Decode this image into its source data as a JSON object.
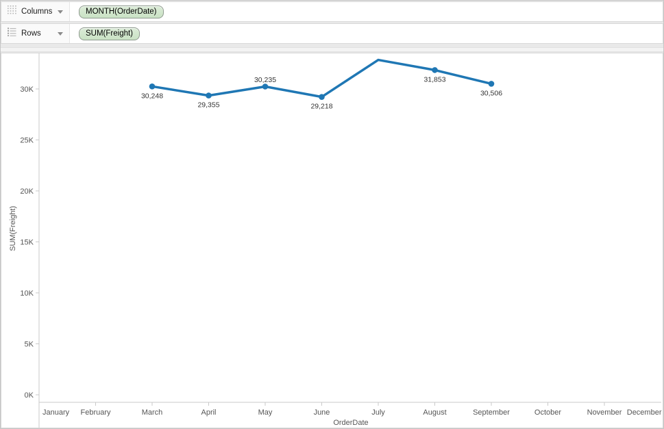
{
  "shelves": {
    "columns": {
      "label": "Columns",
      "pill": "MONTH(OrderDate)"
    },
    "rows": {
      "label": "Rows",
      "pill": "SUM(Freight)"
    }
  },
  "chart_data": {
    "type": "line",
    "title": "",
    "xlabel": "OrderDate",
    "ylabel": "SUM(Freight)",
    "x_categories": [
      "January",
      "February",
      "March",
      "April",
      "May",
      "June",
      "July",
      "August",
      "September",
      "October",
      "November",
      "December"
    ],
    "y_ticks": [
      "0K",
      "5K",
      "10K",
      "15K",
      "20K",
      "25K",
      "30K"
    ],
    "y_tick_values": [
      0,
      5000,
      10000,
      15000,
      20000,
      25000,
      30000
    ],
    "ylim": [
      0,
      33500
    ],
    "grid": "off",
    "legend": "none",
    "series": [
      {
        "name": "SUM(Freight)",
        "color": "#1f77b4",
        "points": [
          {
            "month": "March",
            "value": 30248,
            "label": "30,248",
            "label_position": "below",
            "marker": true
          },
          {
            "month": "April",
            "value": 29355,
            "label": "29,355",
            "label_position": "below",
            "marker": true
          },
          {
            "month": "May",
            "value": 30235,
            "label": "30,235",
            "label_position": "above",
            "marker": true
          },
          {
            "month": "June",
            "value": 29218,
            "label": "29,218",
            "label_position": "below",
            "marker": true
          },
          {
            "month": "July",
            "value": 32850,
            "label": "",
            "label_position": "none",
            "marker": false,
            "value_estimated": true
          },
          {
            "month": "August",
            "value": 31853,
            "label": "31,853",
            "label_position": "below",
            "marker": true
          },
          {
            "month": "September",
            "value": 30506,
            "label": "30,506",
            "label_position": "below",
            "marker": true
          }
        ]
      }
    ]
  },
  "colors": {
    "line": "#1f77b4",
    "axis_line": "#c9c9c9",
    "tick_mark": "#c9c9c9",
    "axis_text": "#555555",
    "data_label_text": "#333333",
    "pill_bg": "#d2e7cf",
    "pill_border": "#8f9a8f",
    "panel_border": "#d6d6d6"
  }
}
